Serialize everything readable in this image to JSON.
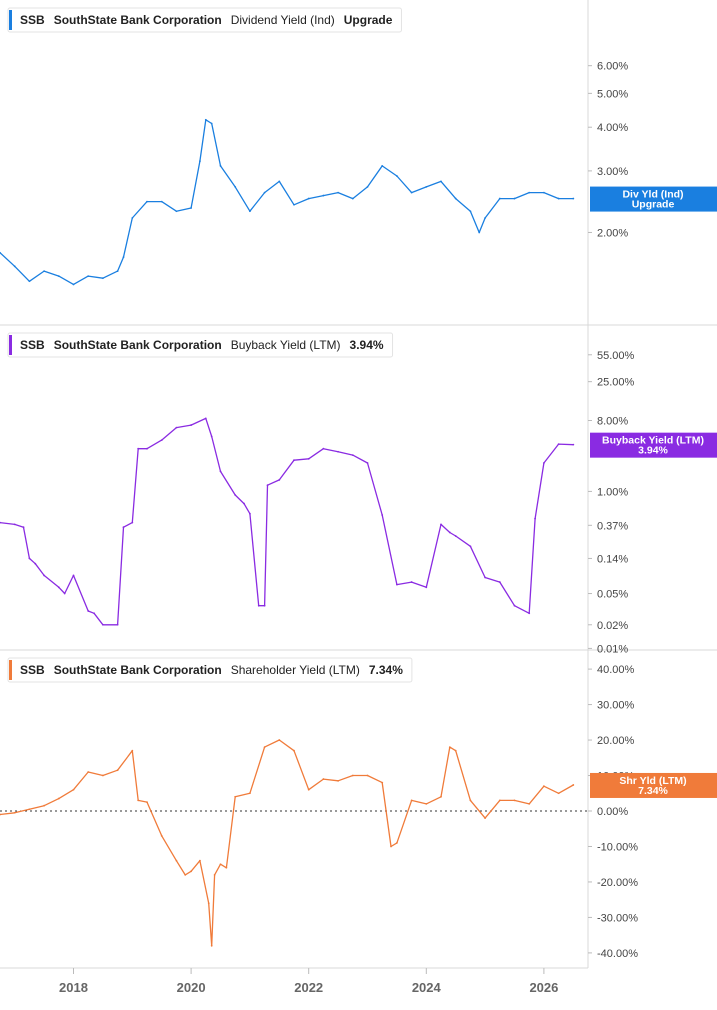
{
  "chart_data": [
    {
      "type": "line",
      "ticker": "SSB",
      "company": "SouthState Bank Corporation",
      "metric": "Dividend Yield (Ind)",
      "current_value": "Upgrade",
      "tag_label": "Div Yld (Ind)",
      "tag_value": "Upgrade",
      "color": "#1a7fe0",
      "scale": "log",
      "ylim": [
        1.2,
        7.2
      ],
      "y_ticks": [
        "2.00%",
        "3.00%",
        "4.00%",
        "5.00%",
        "6.00%"
      ],
      "y_tick_values": [
        2,
        3,
        4,
        5,
        6
      ],
      "series": [
        {
          "x": [
            2016.75,
            2017.0,
            2017.25,
            2017.5,
            2017.75,
            2018.0,
            2018.25,
            2018.5,
            2018.75,
            2018.85,
            2019.0,
            2019.25,
            2019.5,
            2019.75,
            2020.0,
            2020.15,
            2020.25,
            2020.35,
            2020.5,
            2020.75,
            2021.0,
            2021.25,
            2021.5,
            2021.75,
            2022.0,
            2022.25,
            2022.5,
            2022.75,
            2023.0,
            2023.25,
            2023.5,
            2023.75,
            2024.0,
            2024.25,
            2024.5,
            2024.75,
            2024.9,
            2025.0,
            2025.25,
            2025.5,
            2025.75,
            2026.0,
            2026.25,
            2026.5
          ],
          "y": [
            1.75,
            1.6,
            1.45,
            1.55,
            1.5,
            1.42,
            1.5,
            1.48,
            1.55,
            1.7,
            2.2,
            2.45,
            2.45,
            2.3,
            2.35,
            3.2,
            4.2,
            4.1,
            3.1,
            2.7,
            2.3,
            2.6,
            2.8,
            2.4,
            2.5,
            2.55,
            2.6,
            2.5,
            2.7,
            3.1,
            2.9,
            2.6,
            2.7,
            2.8,
            2.5,
            2.3,
            2.0,
            2.2,
            2.5,
            2.5,
            2.6,
            2.6,
            2.5,
            2.5
          ]
        }
      ]
    },
    {
      "type": "line",
      "ticker": "SSB",
      "company": "SouthState Bank Corporation",
      "metric": "Buyback Yield (LTM)",
      "current_value": "3.94%",
      "tag_label": "Buyback Yield (LTM)",
      "tag_value": "3.94%",
      "color": "#8a2be2",
      "scale": "log",
      "ylim": [
        0.009,
        90
      ],
      "y_ticks": [
        "0.01%",
        "0.02%",
        "0.05%",
        "0.14%",
        "0.37%",
        "1.00%",
        "8.00%",
        "25.00%",
        "55.00%"
      ],
      "y_tick_values": [
        0.01,
        0.02,
        0.05,
        0.14,
        0.37,
        1.0,
        8.0,
        25.0,
        55.0
      ],
      "series": [
        {
          "x": [
            2016.75,
            2017.0,
            2017.15,
            2017.25,
            2017.35,
            2017.5,
            2017.75,
            2017.85,
            2018.0,
            2018.25,
            2018.35,
            2018.5,
            2018.75,
            2018.85,
            2019.0,
            2019.1,
            2019.25,
            2019.5,
            2019.75,
            2020.0,
            2020.25,
            2020.35,
            2020.5,
            2020.75,
            2020.9,
            2021.0,
            2021.15,
            2021.25,
            2021.3,
            2021.5,
            2021.75,
            2022.0,
            2022.25,
            2022.5,
            2022.75,
            2023.0,
            2023.25,
            2023.5,
            2023.75,
            2024.0,
            2024.25,
            2024.4,
            2024.5,
            2024.75,
            2025.0,
            2025.25,
            2025.5,
            2025.75,
            2025.85,
            2026.0,
            2026.25,
            2026.5
          ],
          "y": [
            0.4,
            0.38,
            0.35,
            0.14,
            0.12,
            0.085,
            0.06,
            0.05,
            0.085,
            0.03,
            0.028,
            0.02,
            0.02,
            0.35,
            0.4,
            3.5,
            3.5,
            4.5,
            6.5,
            7.0,
            8.5,
            5.0,
            1.8,
            0.9,
            0.7,
            0.52,
            0.035,
            0.035,
            1.2,
            1.4,
            2.5,
            2.6,
            3.5,
            3.2,
            2.9,
            2.3,
            0.5,
            0.065,
            0.07,
            0.06,
            0.38,
            0.3,
            0.27,
            0.2,
            0.08,
            0.07,
            0.035,
            0.028,
            0.45,
            2.3,
            4.0,
            3.94
          ]
        }
      ]
    },
    {
      "type": "line",
      "ticker": "SSB",
      "company": "SouthState Bank Corporation",
      "metric": "Shareholder Yield (LTM)",
      "current_value": "7.34%",
      "tag_label": "Shr Yld (LTM)",
      "tag_value": "7.34%",
      "color": "#f07b3a",
      "scale": "linear",
      "ylim": [
        -42,
        42
      ],
      "y_ticks": [
        "-40.00%",
        "-30.00%",
        "-20.00%",
        "-10.00%",
        "0.00%",
        "10.00%",
        "20.00%",
        "30.00%",
        "40.00%"
      ],
      "y_tick_values": [
        -40,
        -30,
        -20,
        -10,
        0,
        10,
        20,
        30,
        40
      ],
      "series": [
        {
          "x": [
            2016.75,
            2017.0,
            2017.25,
            2017.5,
            2017.75,
            2018.0,
            2018.25,
            2018.5,
            2018.75,
            2019.0,
            2019.1,
            2019.25,
            2019.5,
            2019.75,
            2019.9,
            2020.0,
            2020.15,
            2020.3,
            2020.35,
            2020.4,
            2020.5,
            2020.6,
            2020.75,
            2021.0,
            2021.25,
            2021.5,
            2021.75,
            2022.0,
            2022.25,
            2022.5,
            2022.75,
            2023.0,
            2023.25,
            2023.4,
            2023.5,
            2023.75,
            2024.0,
            2024.25,
            2024.4,
            2024.5,
            2024.75,
            2025.0,
            2025.25,
            2025.5,
            2025.75,
            2026.0,
            2026.25,
            2026.5
          ],
          "y": [
            -1.0,
            -0.5,
            0.5,
            1.5,
            3.5,
            6.0,
            11.0,
            10.0,
            11.5,
            17.0,
            3.0,
            2.5,
            -7.0,
            -14.0,
            -18.0,
            -17.0,
            -14.0,
            -26.0,
            -38.0,
            -18.0,
            -15.0,
            -16.0,
            4.0,
            5.0,
            18.0,
            20.0,
            17.0,
            6.0,
            9.0,
            8.5,
            10.0,
            10.0,
            8.0,
            -10.0,
            -9.0,
            3.0,
            2.0,
            4.0,
            18.0,
            17.0,
            3.0,
            -2.0,
            3.0,
            3.0,
            2.0,
            7.0,
            5.0,
            7.34
          ]
        }
      ]
    }
  ],
  "x_axis": {
    "range": [
      2016.75,
      2026.75
    ],
    "ticks": [
      "2018",
      "2020",
      "2022",
      "2024",
      "2026"
    ],
    "tick_values": [
      2018,
      2020,
      2022,
      2024,
      2026
    ]
  }
}
